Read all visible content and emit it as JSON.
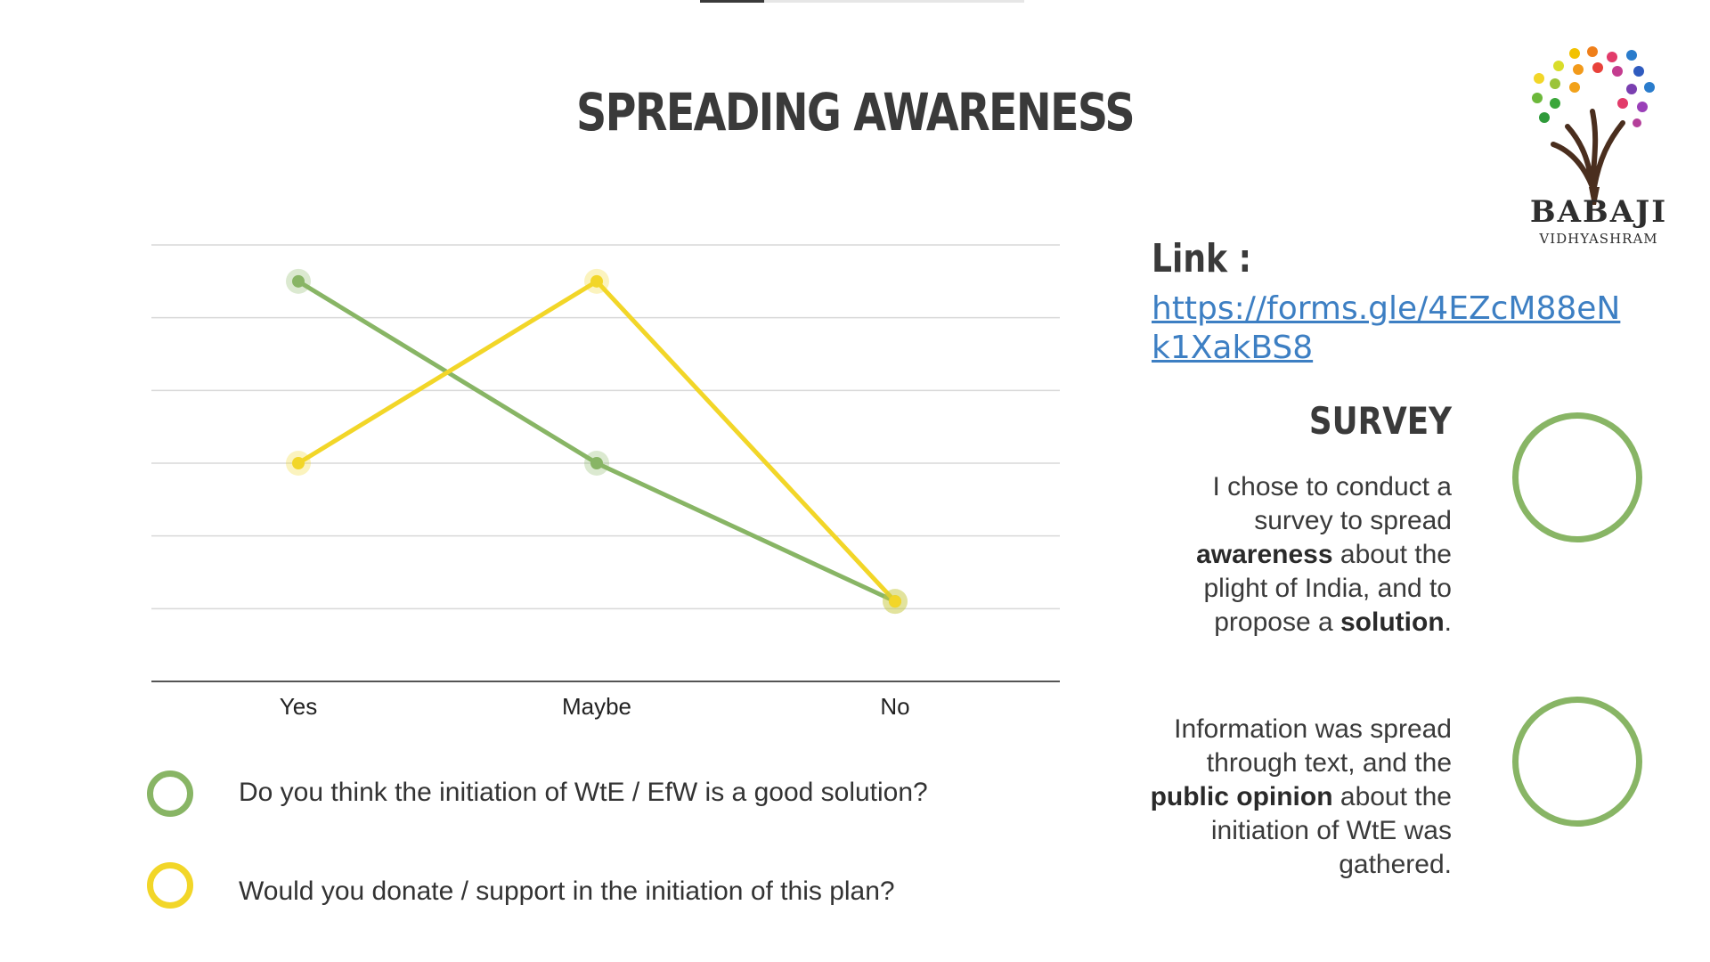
{
  "title": "SPREADING AWARENESS",
  "colors": {
    "green": "#88b565",
    "yellow": "#f2d628",
    "link": "#3d7fc3",
    "text": "#3a3a3a",
    "gridline": "#d9d9d9",
    "axis": "#555555"
  },
  "chart_data": {
    "type": "line",
    "categories": [
      "Yes",
      "Maybe",
      "No"
    ],
    "series": [
      {
        "name": "Do you think the initiation of WtE / EfW is a good solution?",
        "color": "#88b565",
        "values": [
          5.5,
          3,
          1.1
        ]
      },
      {
        "name": "Would you donate / support in the initiation of this plan?",
        "color": "#f2d628",
        "values": [
          3,
          5.5,
          1.1
        ]
      }
    ],
    "ylim": [
      0,
      6
    ],
    "gridlines": 6,
    "grid": true,
    "legend_position": "bottom"
  },
  "logo": {
    "name": "BABAJI",
    "subtitle": "VIDHYASHRAM",
    "icon": "tree-of-dots-icon"
  },
  "link": {
    "label": "Link :",
    "url": "https://forms.gle/4EZcM88eNk1XakBS8"
  },
  "survey": {
    "heading": "SURVEY",
    "paragraph1": {
      "part1": "I chose to conduct a survey to spread ",
      "bold1": "awareness",
      "part2": " about the plight of India, and to propose a ",
      "bold2": "solution",
      "part3": "."
    },
    "paragraph2": {
      "part1": "Information was spread through text, and the ",
      "bold1": "public opinion",
      "part2": " about the initiation of WtE was gathered."
    }
  }
}
